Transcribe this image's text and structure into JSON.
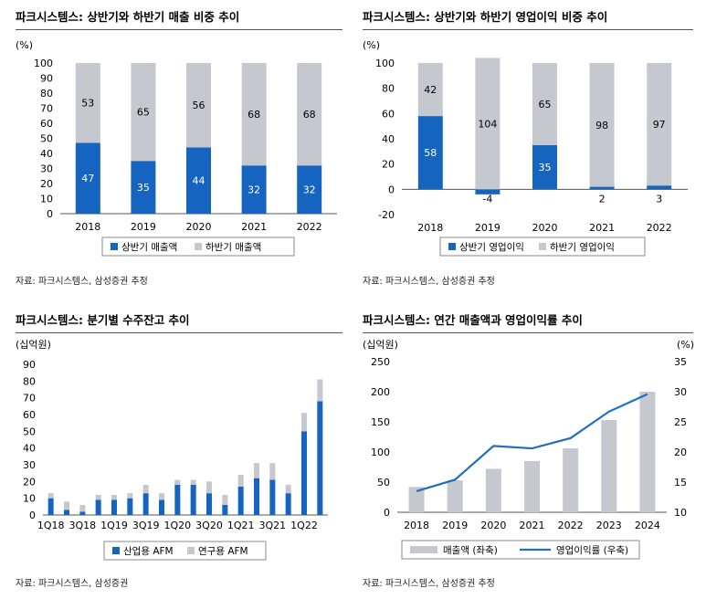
{
  "colors": {
    "blue": "#1565C0",
    "gray": "#C6C8CF",
    "line": "#1E6FC2",
    "axis": "#555555"
  },
  "chart_data": [
    {
      "type": "bar",
      "title": "파크시스템스: 상반기와 하반기 매출 비중 추이",
      "unit_label": "(%)",
      "categories": [
        "2018",
        "2019",
        "2020",
        "2021",
        "2022"
      ],
      "series": [
        {
          "name": "상반기 매출액",
          "values": [
            47,
            35,
            44,
            32,
            32
          ]
        },
        {
          "name": "하반기 매출액",
          "values": [
            53,
            65,
            56,
            68,
            68
          ]
        }
      ],
      "ylim": [
        0,
        100
      ],
      "yticks": [
        "0",
        "10",
        "20",
        "30",
        "40",
        "50",
        "60",
        "70",
        "80",
        "90",
        "100"
      ],
      "stacked": true,
      "legend": "bottom",
      "source": "자료: 파크시스템스, 삼성증권 추정"
    },
    {
      "type": "bar",
      "title": "파크시스템스: 상반기와 하반기 영업이익 비중 추이",
      "unit_label": "(%)",
      "categories": [
        "2018",
        "2019",
        "2020",
        "2021",
        "2022"
      ],
      "series": [
        {
          "name": "상반기 영업이익",
          "values": [
            58,
            -4,
            35,
            2,
            3
          ]
        },
        {
          "name": "하반기 영업이익",
          "values": [
            42,
            104,
            65,
            98,
            97
          ]
        }
      ],
      "ylim": [
        -20,
        100
      ],
      "yticks": [
        "-20",
        "0",
        "20",
        "40",
        "60",
        "80",
        "100"
      ],
      "stacked": true,
      "legend": "bottom",
      "source": "자료: 파크시스템스, 삼성증권 추정"
    },
    {
      "type": "bar",
      "title": "파크시스템스: 분기별 수주잔고 추이",
      "unit_label": "(십억원)",
      "categories": [
        "1Q18",
        "2Q18",
        "3Q18",
        "4Q18",
        "1Q19",
        "2Q19",
        "3Q19",
        "4Q19",
        "1Q20",
        "2Q20",
        "3Q20",
        "4Q20",
        "1Q21",
        "2Q21",
        "3Q21",
        "4Q21",
        "1Q22",
        "2Q22"
      ],
      "x_tick_labels": [
        "1Q18",
        "3Q18",
        "1Q19",
        "3Q19",
        "1Q20",
        "3Q20",
        "1Q21",
        "3Q21",
        "1Q22"
      ],
      "series": [
        {
          "name": "산업용 AFM",
          "values": [
            10,
            3,
            2,
            9,
            9,
            10,
            13,
            9,
            18,
            18,
            13,
            6,
            17,
            22,
            21,
            13,
            50,
            68
          ]
        },
        {
          "name": "연구용 AFM",
          "values": [
            3,
            5,
            4,
            3,
            3,
            3,
            5,
            4,
            3,
            3,
            7,
            6,
            7,
            9,
            10,
            5,
            11,
            13
          ]
        }
      ],
      "ylim": [
        0,
        90
      ],
      "yticks": [
        "0",
        "10",
        "20",
        "30",
        "40",
        "50",
        "60",
        "70",
        "80",
        "90"
      ],
      "stacked": true,
      "legend": "bottom",
      "source": "자료: 파크시스템스, 삼성증권"
    },
    {
      "type": "bar",
      "title": "파크시스템스: 연간 매출액과 영업이익률 추이",
      "unit_label_left": "(십억원)",
      "unit_label_right": "(%)",
      "categories": [
        "2018",
        "2019",
        "2020",
        "2021",
        "2022",
        "2023",
        "2024"
      ],
      "series": [
        {
          "name": "매출액 (좌축)",
          "type": "bar",
          "values": [
            42,
            53,
            72,
            85,
            106,
            153,
            200
          ]
        },
        {
          "name": "영업이익률 (우축)",
          "type": "line",
          "values": [
            13.5,
            15.4,
            21.0,
            20.6,
            22.3,
            26.7,
            29.6
          ]
        }
      ],
      "ylim_left": [
        0,
        250
      ],
      "ylim_right": [
        10,
        35
      ],
      "yticks_left": [
        "0",
        "50",
        "100",
        "150",
        "200",
        "250"
      ],
      "yticks_right": [
        "10",
        "15",
        "20",
        "25",
        "30",
        "35"
      ],
      "legend": "bottom",
      "source": "자료: 파크시스템스, 삼성증권 추정"
    }
  ]
}
